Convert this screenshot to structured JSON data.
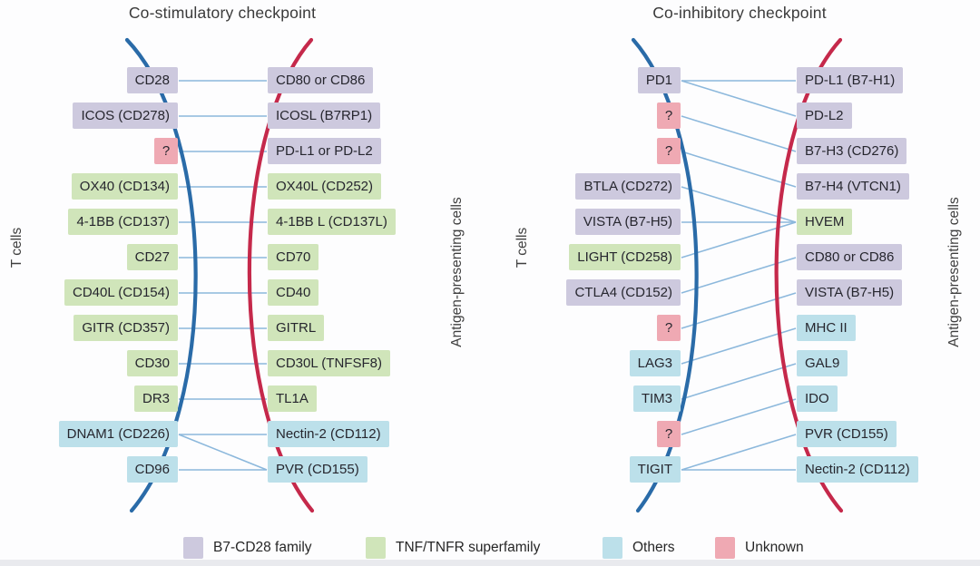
{
  "figure": {
    "panels": [
      {
        "title": "Co-stimulatory checkpoint",
        "left_axis": "T cells",
        "right_axis": "Antigen-presenting cells",
        "left_items": [
          {
            "label": "CD28",
            "family": "b7cd28"
          },
          {
            "label": "ICOS (CD278)",
            "family": "b7cd28"
          },
          {
            "label": "?",
            "family": "unknown"
          },
          {
            "label": "OX40 (CD134)",
            "family": "tnf"
          },
          {
            "label": "4-1BB (CD137)",
            "family": "tnf"
          },
          {
            "label": "CD27",
            "family": "tnf"
          },
          {
            "label": "CD40L (CD154)",
            "family": "tnf"
          },
          {
            "label": "GITR (CD357)",
            "family": "tnf"
          },
          {
            "label": "CD30",
            "family": "tnf"
          },
          {
            "label": "DR3",
            "family": "tnf"
          },
          {
            "label": "DNAM1 (CD226)",
            "family": "others"
          },
          {
            "label": "CD96",
            "family": "others"
          }
        ],
        "right_items": [
          {
            "label": "CD80 or CD86",
            "family": "b7cd28"
          },
          {
            "label": "ICOSL (B7RP1)",
            "family": "b7cd28"
          },
          {
            "label": "PD-L1 or PD-L2",
            "family": "b7cd28"
          },
          {
            "label": "OX40L (CD252)",
            "family": "tnf"
          },
          {
            "label": "4-1BB L (CD137L)",
            "family": "tnf"
          },
          {
            "label": "CD70",
            "family": "tnf"
          },
          {
            "label": "CD40",
            "family": "tnf"
          },
          {
            "label": "GITRL",
            "family": "tnf"
          },
          {
            "label": "CD30L (TNFSF8)",
            "family": "tnf"
          },
          {
            "label": "TL1A",
            "family": "tnf"
          },
          {
            "label": "Nectin-2 (CD112)",
            "family": "others"
          },
          {
            "label": "PVR (CD155)",
            "family": "others"
          }
        ],
        "connections": [
          [
            0,
            0
          ],
          [
            1,
            1
          ],
          [
            2,
            2
          ],
          [
            3,
            3
          ],
          [
            4,
            4
          ],
          [
            5,
            5
          ],
          [
            6,
            6
          ],
          [
            7,
            7
          ],
          [
            8,
            8
          ],
          [
            9,
            9
          ],
          [
            10,
            10
          ],
          [
            10,
            11
          ],
          [
            11,
            11
          ]
        ]
      },
      {
        "title": "Co-inhibitory checkpoint",
        "left_axis": "T cells",
        "right_axis": "Antigen-presenting cells",
        "left_items": [
          {
            "label": "PD1",
            "family": "b7cd28"
          },
          {
            "label": "?",
            "family": "unknown"
          },
          {
            "label": "?",
            "family": "unknown"
          },
          {
            "label": "BTLA (CD272)",
            "family": "b7cd28"
          },
          {
            "label": "VISTA (B7-H5)",
            "family": "b7cd28"
          },
          {
            "label": "LIGHT (CD258)",
            "family": "tnf"
          },
          {
            "label": "CTLA4 (CD152)",
            "family": "b7cd28"
          },
          {
            "label": "?",
            "family": "unknown"
          },
          {
            "label": "LAG3",
            "family": "others"
          },
          {
            "label": "TIM3",
            "family": "others"
          },
          {
            "label": "?",
            "family": "unknown"
          },
          {
            "label": "TIGIT",
            "family": "others"
          }
        ],
        "right_items": [
          {
            "label": "PD-L1 (B7-H1)",
            "family": "b7cd28"
          },
          {
            "label": "PD-L2",
            "family": "b7cd28"
          },
          {
            "label": "B7-H3 (CD276)",
            "family": "b7cd28"
          },
          {
            "label": "B7-H4 (VTCN1)",
            "family": "b7cd28"
          },
          {
            "label": "HVEM",
            "family": "tnf"
          },
          {
            "label": "CD80 or CD86",
            "family": "b7cd28"
          },
          {
            "label": "VISTA (B7-H5)",
            "family": "b7cd28"
          },
          {
            "label": "MHC II",
            "family": "others"
          },
          {
            "label": "GAL9",
            "family": "others"
          },
          {
            "label": "IDO",
            "family": "others"
          },
          {
            "label": "PVR (CD155)",
            "family": "others"
          },
          {
            "label": "Nectin-2 (CD112)",
            "family": "others"
          }
        ],
        "connections": [
          [
            0,
            0
          ],
          [
            0,
            1
          ],
          [
            1,
            2
          ],
          [
            2,
            3
          ],
          [
            3,
            4
          ],
          [
            4,
            4
          ],
          [
            5,
            4
          ],
          [
            6,
            5
          ],
          [
            7,
            6
          ],
          [
            8,
            7
          ],
          [
            9,
            8
          ],
          [
            10,
            9
          ],
          [
            11,
            10
          ],
          [
            11,
            11
          ]
        ]
      }
    ],
    "legend": [
      {
        "label": "B7-CD28 family",
        "family": "b7cd28"
      },
      {
        "label": "TNF/TNFR superfamily",
        "family": "tnf"
      },
      {
        "label": "Others",
        "family": "others"
      },
      {
        "label": "Unknown",
        "family": "unknown"
      }
    ],
    "family_colors": {
      "b7cd28": "#cdc9de",
      "tnf": "#d0e5ba",
      "others": "#bce0ea",
      "unknown": "#efa9b3"
    },
    "line_color": "#8cb8dc",
    "membrane_left_color": "#2a6ba8",
    "membrane_right_color": "#c5294b"
  }
}
